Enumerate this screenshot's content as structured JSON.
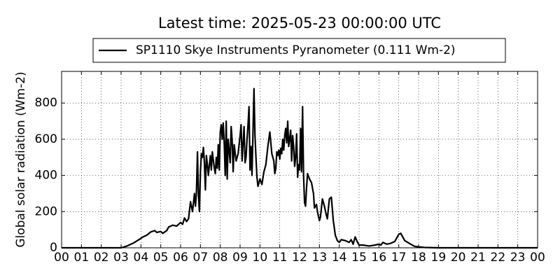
{
  "chart_data": {
    "type": "line",
    "title": "Latest time: 2025-05-23 00:00:00 UTC",
    "y_label": "Global solar radiation (Wm-2)",
    "xlim": [
      0,
      24
    ],
    "ylim": [
      0,
      975
    ],
    "xticks": [
      {
        "value": 0,
        "label": "00"
      },
      {
        "value": 1,
        "label": "01"
      },
      {
        "value": 2,
        "label": "02"
      },
      {
        "value": 3,
        "label": "03"
      },
      {
        "value": 4,
        "label": "04"
      },
      {
        "value": 5,
        "label": "05"
      },
      {
        "value": 6,
        "label": "06"
      },
      {
        "value": 7,
        "label": "07"
      },
      {
        "value": 8,
        "label": "08"
      },
      {
        "value": 9,
        "label": "09"
      },
      {
        "value": 10,
        "label": "10"
      },
      {
        "value": 11,
        "label": "11"
      },
      {
        "value": 12,
        "label": "12"
      },
      {
        "value": 13,
        "label": "13"
      },
      {
        "value": 14,
        "label": "14"
      },
      {
        "value": 15,
        "label": "15"
      },
      {
        "value": 16,
        "label": "16"
      },
      {
        "value": 17,
        "label": "17"
      },
      {
        "value": 18,
        "label": "18"
      },
      {
        "value": 19,
        "label": "19"
      },
      {
        "value": 20,
        "label": "20"
      },
      {
        "value": 21,
        "label": "21"
      },
      {
        "value": 22,
        "label": "22"
      },
      {
        "value": 23,
        "label": "23"
      },
      {
        "value": 24,
        "label": "00"
      }
    ],
    "yticks": [
      0,
      200,
      400,
      600,
      800
    ],
    "grid": true,
    "legend": "upper center",
    "series": [
      {
        "name": "SP1110 Skye Instruments Pyranometer (0.111 Wm-2)",
        "color": "#000000",
        "x": [
          0,
          3,
          3.3,
          3.6,
          3.9,
          4.1,
          4.3,
          4.5,
          4.7,
          4.8,
          5,
          5.1,
          5.3,
          5.4,
          5.6,
          5.8,
          6,
          6.1,
          6.2,
          6.3,
          6.4,
          6.5,
          6.6,
          6.7,
          6.75,
          6.8,
          6.85,
          6.9,
          6.95,
          7,
          7.05,
          7.1,
          7.15,
          7.2,
          7.25,
          7.3,
          7.35,
          7.4,
          7.5,
          7.55,
          7.6,
          7.7,
          7.75,
          7.8,
          7.85,
          7.9,
          7.95,
          8,
          8.05,
          8.1,
          8.15,
          8.2,
          8.25,
          8.3,
          8.35,
          8.4,
          8.5,
          8.55,
          8.6,
          8.65,
          8.7,
          8.8,
          8.9,
          9,
          9.05,
          9.1,
          9.2,
          9.25,
          9.3,
          9.35,
          9.4,
          9.45,
          9.5,
          9.55,
          9.6,
          9.7,
          9.75,
          9.8,
          9.85,
          9.9,
          10,
          10.1,
          10.2,
          10.3,
          10.4,
          10.5,
          10.55,
          10.6,
          10.7,
          10.75,
          10.8,
          10.85,
          10.9,
          10.95,
          11,
          11.05,
          11.1,
          11.15,
          11.2,
          11.25,
          11.3,
          11.35,
          11.4,
          11.45,
          11.5,
          11.55,
          11.6,
          11.65,
          11.7,
          11.75,
          11.8,
          11.85,
          11.9,
          11.95,
          12,
          12.05,
          12.1,
          12.15,
          12.2,
          12.25,
          12.3,
          12.35,
          12.4,
          12.5,
          12.6,
          12.7,
          12.75,
          12.85,
          12.9,
          13,
          13.05,
          13.15,
          13.25,
          13.35,
          13.4,
          13.5,
          13.6,
          13.7,
          13.8,
          13.9,
          14,
          14.1,
          14.3,
          14.5,
          14.6,
          14.7,
          14.8,
          14.9,
          15,
          15.2,
          15.5,
          15.8,
          16,
          16.1,
          16.2,
          16.4,
          16.6,
          16.8,
          17,
          17.1,
          17.3,
          17.6,
          17.8,
          18,
          18.3,
          19,
          24
        ],
        "values": [
          0,
          0,
          10,
          25,
          45,
          60,
          70,
          88,
          95,
          85,
          90,
          80,
          95,
          115,
          125,
          120,
          140,
          130,
          165,
          145,
          160,
          255,
          200,
          300,
          230,
          310,
          530,
          290,
          200,
          420,
          520,
          500,
          555,
          470,
          320,
          510,
          460,
          400,
          510,
          430,
          530,
          440,
          410,
          500,
          440,
          570,
          430,
          640,
          680,
          600,
          690,
          580,
          400,
          700,
          380,
          600,
          470,
          670,
          590,
          420,
          570,
          480,
          520,
          620,
          680,
          480,
          670,
          470,
          500,
          600,
          680,
          780,
          430,
          560,
          400,
          880,
          620,
          500,
          390,
          340,
          380,
          350,
          420,
          460,
          560,
          640,
          580,
          520,
          480,
          410,
          440,
          530,
          510,
          540,
          490,
          550,
          520,
          600,
          540,
          620,
          660,
          580,
          700,
          560,
          600,
          650,
          480,
          620,
          560,
          450,
          500,
          630,
          390,
          460,
          430,
          660,
          420,
          780,
          400,
          250,
          230,
          330,
          410,
          380,
          360,
          300,
          220,
          240,
          200,
          150,
          170,
          270,
          230,
          180,
          160,
          270,
          280,
          150,
          70,
          40,
          30,
          45,
          40,
          30,
          45,
          20,
          60,
          35,
          15,
          15,
          10,
          15,
          20,
          15,
          30,
          20,
          25,
          35,
          75,
          80,
          40,
          20,
          8,
          5,
          2,
          0,
          0
        ]
      }
    ]
  }
}
